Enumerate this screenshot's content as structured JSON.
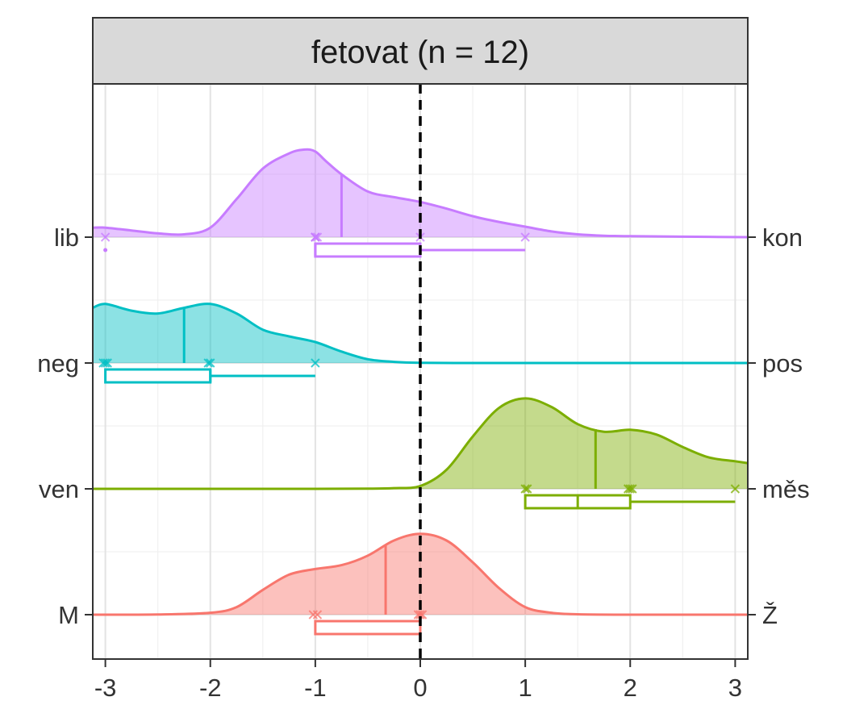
{
  "chart_data": {
    "type": "ridgeline-density",
    "title": "fetovat (n = 12)",
    "xlim": [
      -3.12,
      3.12
    ],
    "x_ticks": [
      "-3",
      "-2",
      "-1",
      "0",
      "1",
      "2",
      "3"
    ],
    "y_left_labels": [
      "lib",
      "neg",
      "ven",
      "M"
    ],
    "y_right_labels": [
      "kon",
      "pos",
      "měs",
      "Ž"
    ],
    "reference_line": {
      "x": 0,
      "style": "dashed"
    },
    "grid": "major and minor",
    "series": [
      {
        "left_label": "lib",
        "right_label": "kon",
        "color": "#c77cff",
        "mean": -0.75,
        "density_x": [
          -3.12,
          -3.0,
          -2.75,
          -2.5,
          -2.25,
          -2.0,
          -1.75,
          -1.5,
          -1.25,
          -1.1,
          -1.0,
          -0.9,
          -0.75,
          -0.5,
          -0.25,
          0,
          0.25,
          0.5,
          0.75,
          1.0,
          1.25,
          1.5,
          1.75,
          2.0,
          2.5,
          3.12
        ],
        "density_y": [
          0.1,
          0.1,
          0.07,
          0.04,
          0.03,
          0.1,
          0.4,
          0.72,
          0.88,
          0.92,
          0.9,
          0.8,
          0.66,
          0.48,
          0.42,
          0.37,
          0.3,
          0.22,
          0.16,
          0.11,
          0.06,
          0.03,
          0.015,
          0.01,
          0.005,
          0.0
        ],
        "points": [
          -3,
          -1,
          -1,
          -0.98,
          -1,
          0,
          1
        ],
        "box": {
          "q1": -1,
          "median": -1,
          "q3": 0,
          "whisker_low": -1,
          "whisker_high": 1
        },
        "outliers": [
          -3
        ]
      },
      {
        "left_label": "neg",
        "right_label": "pos",
        "color": "#00bfc4",
        "mean": -2.25,
        "density_x": [
          -3.12,
          -3.0,
          -2.75,
          -2.5,
          -2.25,
          -2.0,
          -1.75,
          -1.5,
          -1.25,
          -1.0,
          -0.75,
          -0.5,
          -0.25,
          0,
          0.5,
          1.0,
          2.0,
          3.12
        ],
        "density_y": [
          0.58,
          0.62,
          0.55,
          0.52,
          0.58,
          0.62,
          0.52,
          0.35,
          0.28,
          0.22,
          0.12,
          0.04,
          0.012,
          0.002,
          0.0,
          0.0,
          0.0,
          0.0
        ],
        "points": [
          -3.02,
          -3,
          -2.98,
          -2.02,
          -2,
          -1
        ],
        "box": {
          "q1": -3,
          "median": -2,
          "q3": -2,
          "whisker_low": -3,
          "whisker_high": -1
        },
        "outliers": []
      },
      {
        "left_label": "ven",
        "right_label": "měs",
        "color": "#7cae00",
        "mean": 1.67,
        "density_x": [
          -3.12,
          -2.0,
          -1.0,
          -0.5,
          -0.25,
          0,
          0.25,
          0.5,
          0.75,
          1.0,
          1.25,
          1.5,
          1.75,
          2.0,
          2.25,
          2.5,
          2.75,
          3.0,
          3.12
        ],
        "density_y": [
          0.0,
          0.0,
          0.0,
          0.002,
          0.008,
          0.03,
          0.2,
          0.55,
          0.85,
          0.95,
          0.86,
          0.68,
          0.6,
          0.62,
          0.57,
          0.44,
          0.33,
          0.29,
          0.27
        ],
        "points": [
          1,
          1.02,
          1.98,
          2,
          2.02,
          3
        ],
        "box": {
          "q1": 1,
          "median": 1.5,
          "q3": 2,
          "whisker_low": 1,
          "whisker_high": 3
        },
        "outliers": []
      },
      {
        "left_label": "M",
        "right_label": "Ž",
        "color": "#f8766d",
        "mean": -0.33,
        "density_x": [
          -3.12,
          -2.5,
          -2.0,
          -1.75,
          -1.5,
          -1.25,
          -1.0,
          -0.75,
          -0.5,
          -0.25,
          0,
          0.25,
          0.5,
          0.75,
          1.0,
          1.25,
          1.5,
          2.0,
          3.12
        ],
        "density_y": [
          0.0,
          0.002,
          0.02,
          0.08,
          0.26,
          0.42,
          0.48,
          0.52,
          0.62,
          0.78,
          0.85,
          0.78,
          0.55,
          0.28,
          0.08,
          0.02,
          0.004,
          0.0,
          0.0
        ],
        "points": [
          -1.02,
          -0.98,
          -0.02,
          0,
          0.02
        ],
        "box": {
          "q1": -1,
          "median": 0,
          "q3": 0,
          "whisker_low": -1,
          "whisker_high": 0
        },
        "outliers": []
      }
    ]
  }
}
